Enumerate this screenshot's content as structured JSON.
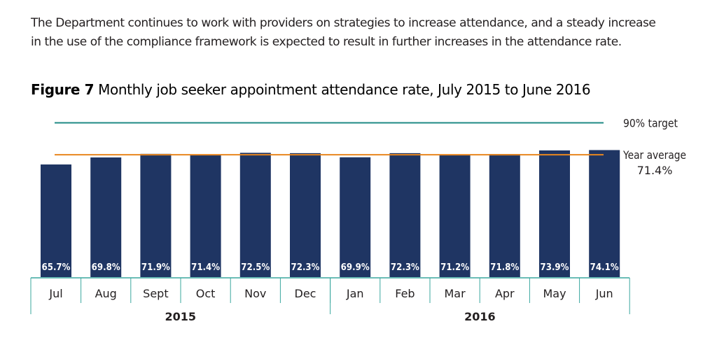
{
  "intro": {
    "line1": "The Department continues to work with providers on strategies to increase attendance, and a steady increase",
    "line2": "in the use of the compliance framework is expected to result in further increases in the attendance rate."
  },
  "figure": {
    "number": "Figure 7",
    "title": "Monthly job seeker appointment attendance rate, July 2015 to June 2016"
  },
  "chart_data": {
    "type": "bar",
    "categories": [
      "Jul",
      "Aug",
      "Sept",
      "Oct",
      "Nov",
      "Dec",
      "Jan",
      "Feb",
      "Mar",
      "Apr",
      "May",
      "Jun"
    ],
    "values": [
      65.7,
      69.8,
      71.9,
      71.4,
      72.5,
      72.3,
      69.9,
      72.3,
      71.2,
      71.8,
      73.9,
      74.1
    ],
    "data_labels": [
      "65.7%",
      "69.8%",
      "71.9%",
      "71.4%",
      "72.5%",
      "72.3%",
      "69.9%",
      "72.3%",
      "71.2%",
      "71.8%",
      "73.9%",
      "74.1%"
    ],
    "groups": [
      {
        "label": "2015",
        "from": 0,
        "to": 5
      },
      {
        "label": "2016",
        "from": 6,
        "to": 11
      }
    ],
    "reference_lines": [
      {
        "label": "90% target",
        "value": 90,
        "color": "#1f8a85"
      },
      {
        "label": "Year average",
        "sublabel": "71.4%",
        "value": 71.4,
        "color": "#e8861f"
      }
    ],
    "bar_color": "#1f3563",
    "axis_color": "#3aa79e",
    "ylim": [
      0,
      90
    ]
  }
}
